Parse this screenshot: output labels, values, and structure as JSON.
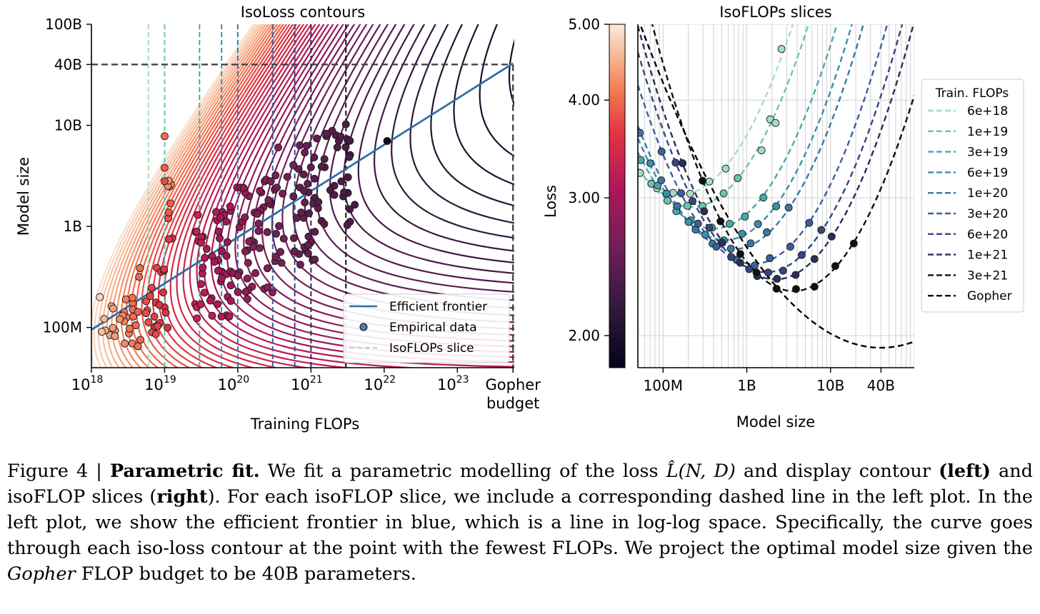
{
  "chart_data": [
    {
      "type": "contour",
      "title": "IsoLoss contours",
      "xlabel": "Training FLOPs",
      "ylabel": "Model size",
      "xscale": "log",
      "yscale": "log",
      "xlim": [
        1e+18,
        6e+23
      ],
      "ylim": [
        40000000.0,
        100000000000.0
      ],
      "xticks": [
        {
          "value": 1e+18,
          "base": "10",
          "exp": "18"
        },
        {
          "value": 1e+19,
          "base": "10",
          "exp": "19"
        },
        {
          "value": 1e+20,
          "base": "10",
          "exp": "20"
        },
        {
          "value": 1e+21,
          "base": "10",
          "exp": "21"
        },
        {
          "value": 1e+22,
          "base": "10",
          "exp": "22"
        },
        {
          "value": 1e+23,
          "base": "10",
          "exp": "23"
        }
      ],
      "gopher_tick": {
        "value": 5.76e+23,
        "line1": "Gopher",
        "line2": "budget"
      },
      "yticks": [
        {
          "value": 100000000.0,
          "label": "100M"
        },
        {
          "value": 1000000000.0,
          "label": "1B"
        },
        {
          "value": 10000000000.0,
          "label": "10B"
        },
        {
          "value": 40000000000.0,
          "label": "40B"
        },
        {
          "value": 100000000000.0,
          "label": "100B"
        }
      ],
      "efficient_frontier": {
        "x": [
          1e+18,
          5.76e+23
        ],
        "y": [
          95000000.0,
          41000000000.0
        ],
        "color": "#2f6ea8"
      },
      "projection": {
        "x": 5.76e+23,
        "y": 40000000000.0
      },
      "isoflop_slices": [
        {
          "flops": 6e+18,
          "color": "#a6dcc4"
        },
        {
          "flops": 1e+19,
          "color": "#6cc2b4"
        },
        {
          "flops": 3e+19,
          "color": "#4aa9ad"
        },
        {
          "flops": 6e+19,
          "color": "#3b8fa8"
        },
        {
          "flops": 1e+20,
          "color": "#3a78a3"
        },
        {
          "flops": 3e+20,
          "color": "#3b5f9a"
        },
        {
          "flops": 6e+20,
          "color": "#37467f"
        },
        {
          "flops": 1e+21,
          "color": "#2a2f5a"
        },
        {
          "flops": 3e+21,
          "color": "#111111"
        }
      ],
      "legend": {
        "position": "lower-right",
        "entries": [
          "Efficient frontier",
          "Empirical data",
          "IsoFLOPs slice"
        ]
      }
    },
    {
      "type": "line",
      "title": "IsoFLOPs slices",
      "xlabel": "Model size",
      "ylabel": "Loss",
      "xscale": "log",
      "yscale": "log",
      "xlim": [
        50000000.0,
        100000000000.0
      ],
      "ylim": [
        1.82,
        5.0
      ],
      "xticks": [
        {
          "value": 100000000.0,
          "label": "100M"
        },
        {
          "value": 1000000000.0,
          "label": "1B"
        },
        {
          "value": 10000000000.0,
          "label": "10B"
        },
        {
          "value": 40000000000.0,
          "label": "40B"
        }
      ],
      "yticks": [
        {
          "value": 2.0,
          "label": "2.00"
        },
        {
          "value": 3.0,
          "label": "3.00"
        },
        {
          "value": 4.0,
          "label": "4.00"
        },
        {
          "value": 5.0,
          "label": "5.00"
        }
      ],
      "grid": true,
      "legend": {
        "position": "right",
        "title": "Train. FLOPs",
        "entries": [
          {
            "name": "6e+18",
            "color": "#a6dcc4"
          },
          {
            "name": "1e+19",
            "color": "#6cc2b4"
          },
          {
            "name": "3e+19",
            "color": "#4aa9ad"
          },
          {
            "name": "6e+19",
            "color": "#3b8fa8"
          },
          {
            "name": "1e+20",
            "color": "#3a78a3"
          },
          {
            "name": "3e+20",
            "color": "#3b5f9a"
          },
          {
            "name": "6e+20",
            "color": "#37467f"
          },
          {
            "name": "1e+21",
            "color": "#2a2f5a"
          },
          {
            "name": "3e+21",
            "color": "#111111"
          },
          {
            "name": "Gopher",
            "color": "#000000"
          }
        ]
      },
      "curves": [
        {
          "name": "6e+18",
          "flops": 6e+18,
          "min_x": 160000000.0,
          "min_loss": 3.03
        },
        {
          "name": "1e+19",
          "flops": 1e+19,
          "min_x": 220000000.0,
          "min_loss": 2.92
        },
        {
          "name": "3e+19",
          "flops": 3e+19,
          "min_x": 400000000.0,
          "min_loss": 2.74
        },
        {
          "name": "6e+19",
          "flops": 6e+19,
          "min_x": 550000000.0,
          "min_loss": 2.65
        },
        {
          "name": "1e+20",
          "flops": 1e+20,
          "min_x": 700000000.0,
          "min_loss": 2.58
        },
        {
          "name": "3e+20",
          "flops": 3e+20,
          "min_x": 1200000000.0,
          "min_loss": 2.47
        },
        {
          "name": "6e+20",
          "flops": 6e+20,
          "min_x": 1700000000.0,
          "min_loss": 2.41
        },
        {
          "name": "1e+21",
          "flops": 1e+21,
          "min_x": 2200000000.0,
          "min_loss": 2.36
        },
        {
          "name": "3e+21",
          "flops": 3e+21,
          "min_x": 3600000000.0,
          "min_loss": 2.28
        },
        {
          "name": "Gopher",
          "flops": 5.76e+23,
          "min_x": 40000000000.0,
          "min_loss": 1.93
        }
      ],
      "colorbar": {
        "cmap": "rocket",
        "position": "left"
      }
    }
  ],
  "caption": {
    "prefix": "Figure 4 | ",
    "bold_title": "Parametric fit.",
    "part1": " We fit a parametric modelling of the loss ",
    "math": "L̂(N, D)",
    "part2": " and display contour ",
    "left": "(left)",
    "part3": " and isoFLOP slices (",
    "right": "right",
    "part4": "). For each isoFLOP slice, we include a corresponding dashed line in the left plot. In the left plot, we show the efficient frontier in blue, which is a line in log-log space. Specifically, the curve goes through each iso-loss contour at the point with the fewest FLOPs. We project the optimal model size given the ",
    "gopher": "Gopher",
    "part5": " FLOP budget to be 40B parameters."
  }
}
